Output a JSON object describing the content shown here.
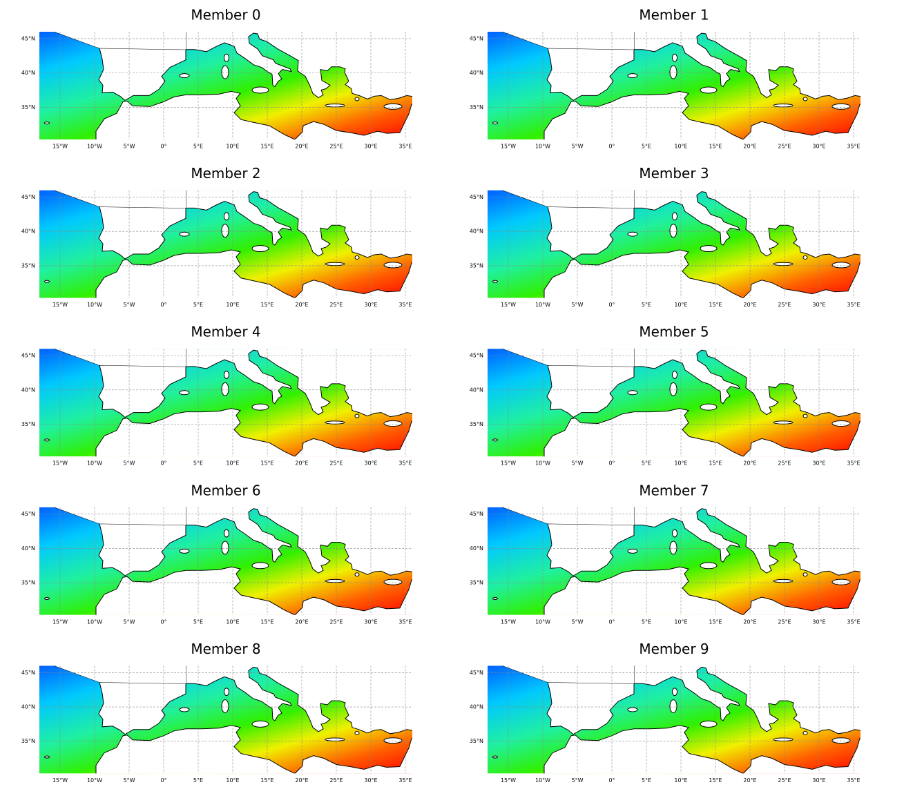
{
  "maps": [
    {
      "title": "Member 0"
    },
    {
      "title": "Member 1"
    },
    {
      "title": "Member 2"
    },
    {
      "title": "Member 3"
    },
    {
      "title": "Member 4"
    },
    {
      "title": "Member 5"
    },
    {
      "title": "Member 6"
    },
    {
      "title": "Member 7"
    },
    {
      "title": "Member 8"
    },
    {
      "title": "Member 9"
    }
  ],
  "lon_range": [
    -18,
    36
  ],
  "lat_range": [
    30.3,
    46
  ],
  "lon_ticks": [
    {
      "value": -15,
      "label": "15°W"
    },
    {
      "value": -10,
      "label": "10°W"
    },
    {
      "value": -5,
      "label": "5°W"
    },
    {
      "value": 0,
      "label": "0°"
    },
    {
      "value": 5,
      "label": "5°E"
    },
    {
      "value": 10,
      "label": "10°E"
    },
    {
      "value": 15,
      "label": "15°E"
    },
    {
      "value": 20,
      "label": "20°E"
    },
    {
      "value": 25,
      "label": "25°E"
    },
    {
      "value": 30,
      "label": "30°E"
    },
    {
      "value": 35,
      "label": "35°E"
    }
  ],
  "lat_ticks": [
    {
      "value": 35,
      "label": "35°N"
    },
    {
      "value": 40,
      "label": "40°N"
    },
    {
      "value": 45,
      "label": "45°N"
    }
  ]
}
